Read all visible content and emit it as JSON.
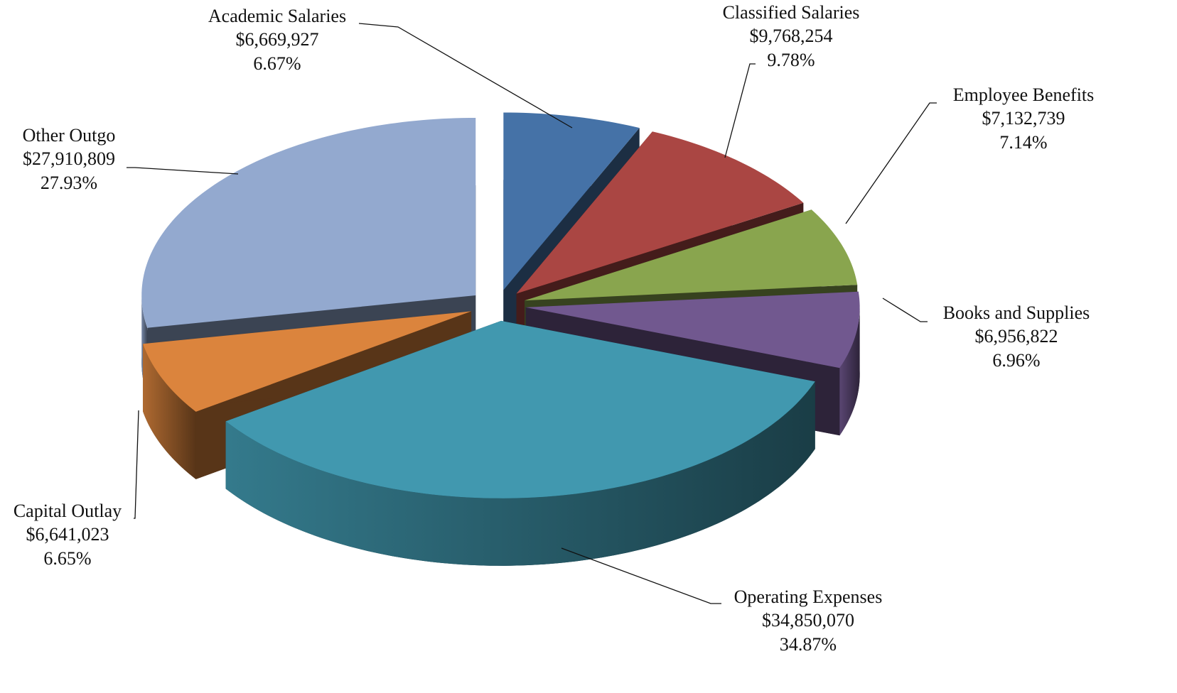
{
  "chart_data": {
    "type": "pie",
    "categories": [
      "Academic Salaries",
      "Classified Salaries",
      "Employee Benefits",
      "Books and Supplies",
      "Operating Expenses",
      "Capital Outlay",
      "Other Outgo"
    ],
    "values": [
      6669927,
      9768254,
      7132739,
      6956822,
      34850070,
      6641023,
      27910809
    ],
    "value_labels": [
      "$6,669,927",
      "$9,768,254",
      "$7,132,739",
      "$6,956,822",
      "$34,850,070",
      "$6,641,023",
      "$27,910,809"
    ],
    "percentages": [
      6.67,
      9.78,
      7.14,
      6.96,
      34.87,
      6.65,
      27.93
    ],
    "percentage_labels": [
      "6.67%",
      "9.78%",
      "7.14%",
      "6.96%",
      "34.87%",
      "6.65%",
      "27.93%"
    ],
    "colors": [
      "#4572a7",
      "#aa4643",
      "#89a54e",
      "#71588f",
      "#4198af",
      "#db843d",
      "#93a9cf"
    ],
    "exploded": true,
    "three_d": true
  }
}
